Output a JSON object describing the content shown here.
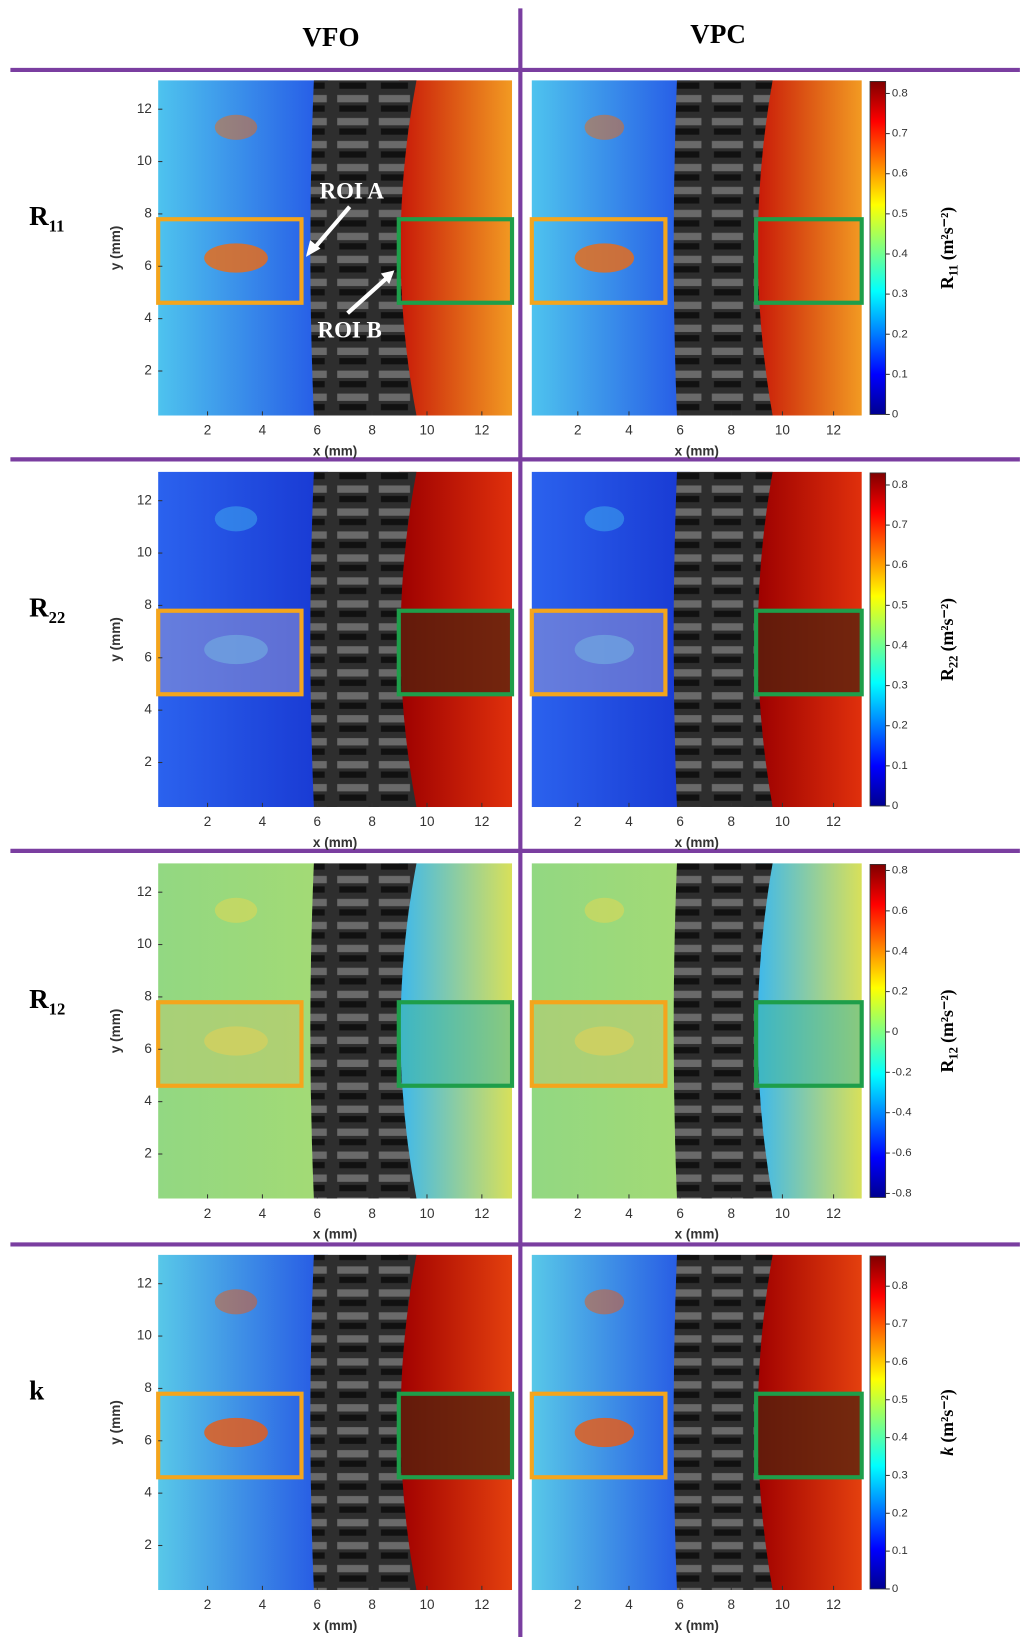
{
  "header": {
    "columns": [
      "VFO",
      "VPC"
    ]
  },
  "axes": {
    "x_label": "x (mm)",
    "y_label": "y (mm)",
    "xticks": [
      2,
      4,
      6,
      8,
      10,
      12
    ],
    "yticks": [
      2,
      4,
      6,
      8,
      10,
      12
    ],
    "xlim": [
      0.2,
      13.1
    ],
    "ylim": [
      0.3,
      13.1
    ]
  },
  "rows": [
    {
      "label": "R",
      "sub": "11",
      "colorbar": {
        "symbol": "R",
        "sub": "11",
        "unit": "(m²s⁻²)",
        "lim": [
          0,
          0.83
        ],
        "ticks": [
          0,
          0.1,
          0.2,
          0.3,
          0.4,
          0.5,
          0.6,
          0.7,
          0.8
        ]
      }
    },
    {
      "label": "R",
      "sub": "22",
      "colorbar": {
        "symbol": "R",
        "sub": "22",
        "unit": "(m²s⁻²)",
        "lim": [
          0,
          0.83
        ],
        "ticks": [
          0,
          0.1,
          0.2,
          0.3,
          0.4,
          0.5,
          0.6,
          0.7,
          0.8
        ]
      }
    },
    {
      "label": "R",
      "sub": "12",
      "colorbar": {
        "symbol": "R",
        "sub": "12",
        "unit": "(m²s⁻²)",
        "lim": [
          -0.82,
          0.83
        ],
        "ticks": [
          -0.8,
          -0.6,
          -0.4,
          -0.2,
          0,
          0.2,
          0.4,
          0.6,
          0.8
        ]
      }
    },
    {
      "label": "k",
      "colorbar": {
        "symbol": "k",
        "unit": "(m²s⁻²)",
        "lim": [
          0,
          0.88
        ],
        "ticks": [
          0,
          0.1,
          0.2,
          0.3,
          0.4,
          0.5,
          0.6,
          0.7,
          0.8
        ]
      }
    }
  ],
  "annotations": [
    "ROI A",
    "ROI B"
  ]
}
